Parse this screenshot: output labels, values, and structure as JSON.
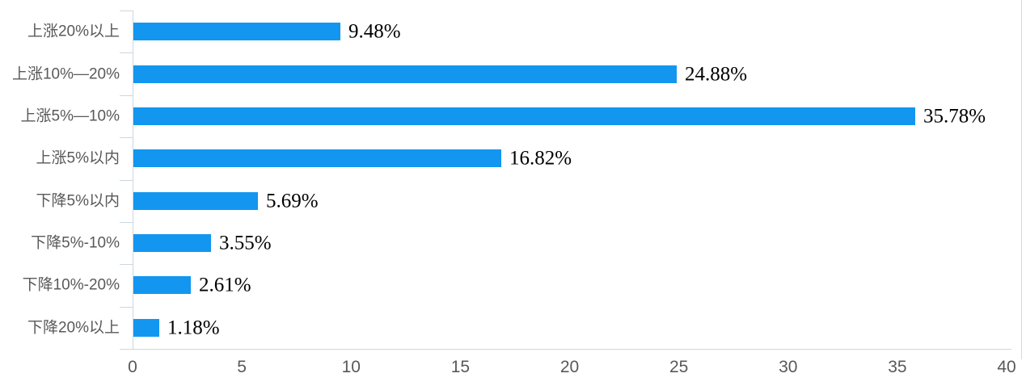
{
  "chart_data": {
    "type": "bar",
    "orientation": "horizontal",
    "title": "",
    "xlabel": "",
    "ylabel": "",
    "categories": [
      "上涨20%以上",
      "上涨10%—20%",
      "上涨5%—10%",
      "上涨5%以内",
      "下降5%以内",
      "下降5%-10%",
      "下降10%-20%",
      "下降20%以上"
    ],
    "values": [
      9.48,
      24.88,
      35.78,
      16.82,
      5.69,
      3.55,
      2.61,
      1.18
    ],
    "value_labels": [
      "9.48%",
      "24.88%",
      "35.78%",
      "16.82%",
      "5.69%",
      "3.55%",
      "2.61%",
      "1.18%"
    ],
    "x_ticks": [
      "0",
      "5",
      "10",
      "15",
      "20",
      "25",
      "30",
      "35",
      "40"
    ],
    "xlim": [
      0,
      40
    ],
    "grid": false,
    "legend": false,
    "colors": {
      "bar": "#1296f0",
      "axis_line": "#ccd7e0",
      "category_label": "#595959",
      "tick_label": "#595959",
      "value_label": "#000000",
      "right_border": "#d9d9d9"
    }
  }
}
